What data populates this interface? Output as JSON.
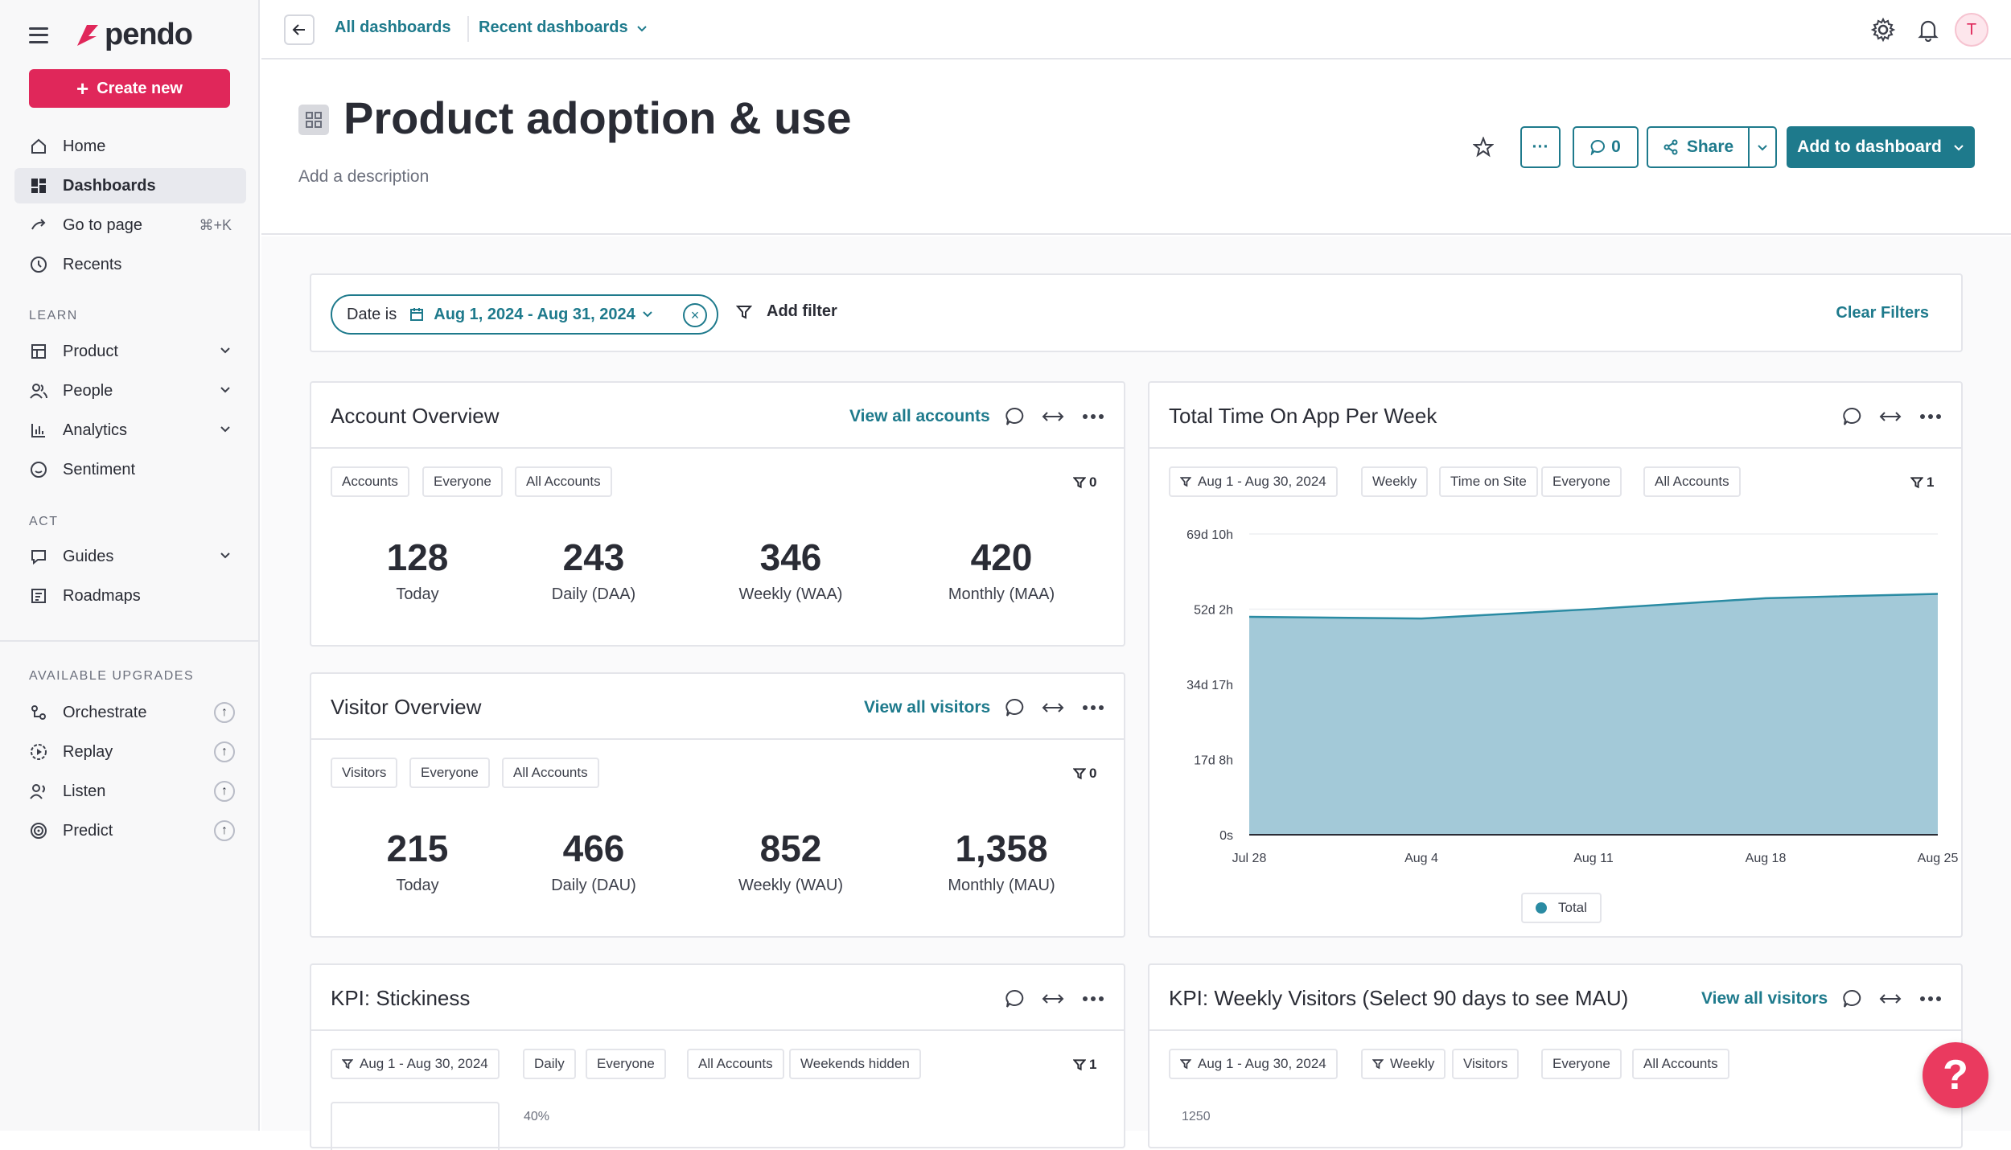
{
  "sidebar": {
    "logo_text": "pendo",
    "create_label": "Create new",
    "items": {
      "home": "Home",
      "dashboards": "Dashboards",
      "goto": "Go to page",
      "goto_shortcut": "⌘+K",
      "recents": "Recents"
    },
    "learn_label": "LEARN",
    "learn": {
      "product": "Product",
      "people": "People",
      "analytics": "Analytics",
      "sentiment": "Sentiment"
    },
    "act_label": "ACT",
    "act": {
      "guides": "Guides",
      "roadmaps": "Roadmaps"
    },
    "upgrades_label": "AVAILABLE UPGRADES",
    "upgrades": {
      "orchestrate": "Orchestrate",
      "replay": "Replay",
      "listen": "Listen",
      "predict": "Predict"
    }
  },
  "topbar": {
    "crumb_all": "All dashboards",
    "crumb_recent": "Recent dashboards",
    "avatar_initial": "T"
  },
  "header": {
    "title": "Product adoption & use",
    "description": "Add a description",
    "more_label": "···",
    "comments_count": "0",
    "share_label": "Share",
    "add_label": "Add to dashboard"
  },
  "filters": {
    "date_label": "Date is",
    "date_value": "Aug 1, 2024 - Aug 31, 2024",
    "add_filter": "Add filter",
    "clear": "Clear Filters"
  },
  "account_overview": {
    "title": "Account Overview",
    "link": "View all accounts",
    "chips": [
      "Accounts",
      "Everyone",
      "All Accounts"
    ],
    "filter_count": "0",
    "metrics": [
      {
        "value": "128",
        "label": "Today"
      },
      {
        "value": "243",
        "label": "Daily (DAA)"
      },
      {
        "value": "346",
        "label": "Weekly (WAA)"
      },
      {
        "value": "420",
        "label": "Monthly (MAA)"
      }
    ]
  },
  "visitor_overview": {
    "title": "Visitor Overview",
    "link": "View all visitors",
    "chips": [
      "Visitors",
      "Everyone",
      "All Accounts"
    ],
    "filter_count": "0",
    "metrics": [
      {
        "value": "215",
        "label": "Today"
      },
      {
        "value": "466",
        "label": "Daily (DAU)"
      },
      {
        "value": "852",
        "label": "Weekly (WAU)"
      },
      {
        "value": "1,358",
        "label": "Monthly (MAU)"
      }
    ]
  },
  "time_on_app": {
    "title": "Total Time On App Per Week",
    "chips": [
      "Aug 1 - Aug 30, 2024",
      "Weekly",
      "Time on Site",
      "Everyone",
      "All Accounts"
    ],
    "filter_count": "1",
    "legend": "Total",
    "accent": "#a3c9d8",
    "line_color": "#2a8ba3"
  },
  "chart_data": {
    "type": "area",
    "x": [
      "Jul 28",
      "Aug 4",
      "Aug 11",
      "Aug 18",
      "Aug 25"
    ],
    "x_ticks": [
      "Jul 28",
      "Aug 4",
      "Aug 11",
      "Aug 18",
      "Aug 25"
    ],
    "y_ticks": [
      "0s",
      "17d 8h",
      "34d 17h",
      "52d 2h",
      "69d 10h"
    ],
    "ylim_days": [
      0,
      69.42
    ],
    "series": [
      {
        "name": "Total",
        "values_days": [
          50.3,
          49.9,
          52.1,
          54.6,
          55.6
        ]
      }
    ],
    "legend_position": "bottom"
  },
  "stickiness": {
    "title": "KPI: Stickiness",
    "chips": [
      "Aug 1 - Aug 30, 2024",
      "Daily",
      "Everyone",
      "All Accounts",
      "Weekends hidden"
    ],
    "filter_count": "1",
    "axis_label": "40%"
  },
  "weekly_visitors": {
    "title": "KPI: Weekly Visitors (Select 90 days to see MAU)",
    "link": "View all visitors",
    "chips": [
      "Aug 1 - Aug 30, 2024",
      "Weekly",
      "Visitors",
      "Everyone",
      "All Accounts"
    ],
    "axis_label": "1250"
  },
  "help_label": "?"
}
